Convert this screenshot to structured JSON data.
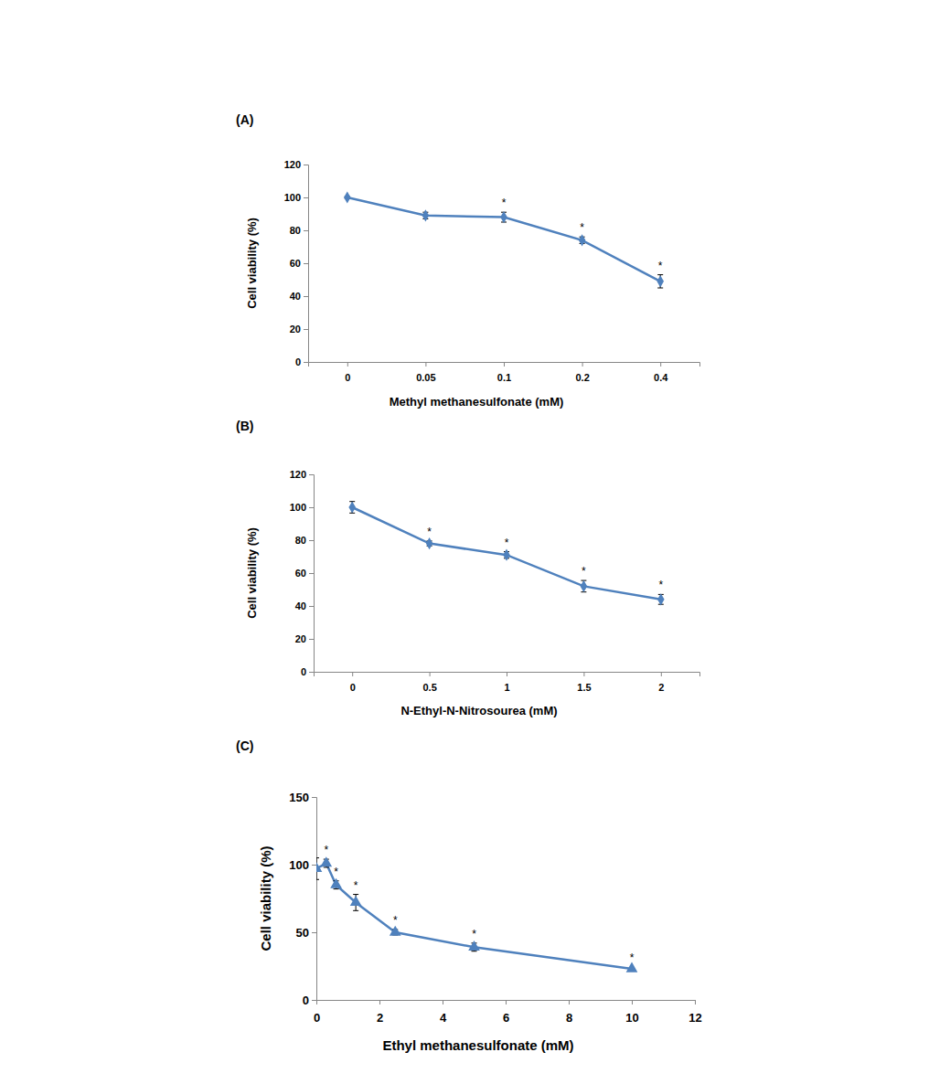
{
  "chart_data": [
    {
      "type": "line",
      "title": "(A)",
      "categories": [
        "0",
        "0.05",
        "0.1",
        "0.2",
        "0.4"
      ],
      "values": [
        100,
        89,
        88,
        74,
        49
      ],
      "errors": [
        0.5,
        2,
        3,
        2,
        4
      ],
      "significance": [
        null,
        null,
        "*",
        "*",
        "*"
      ],
      "color": "#4f81bd",
      "marker": "diamond",
      "x_label": "Methyl methanesulfonate (mM)",
      "y_label": "Cell viability (%)",
      "ylim": [
        0,
        120
      ],
      "yticks": [
        0,
        20,
        40,
        60,
        80,
        100,
        120
      ],
      "grid": false
    },
    {
      "type": "line",
      "title": "(B)",
      "categories": [
        "0",
        "0.5",
        "1",
        "1.5",
        "2"
      ],
      "values": [
        100,
        78,
        71,
        52,
        44
      ],
      "errors": [
        3.5,
        1.5,
        2,
        3.5,
        3
      ],
      "significance": [
        null,
        "*",
        "*",
        "*",
        "*"
      ],
      "color": "#4f81bd",
      "marker": "diamond",
      "x_label": "N-Ethyl-N-Nitrosourea (mM)",
      "y_label": "Cell viability (%)",
      "ylim": [
        0,
        120
      ],
      "yticks": [
        0,
        20,
        40,
        60,
        80,
        100,
        120
      ],
      "grid": false
    },
    {
      "type": "line",
      "title": "(C)",
      "x": [
        0,
        0.3125,
        0.625,
        1.25,
        2.5,
        5,
        10
      ],
      "values": [
        97,
        101,
        85,
        72,
        50,
        39,
        23
      ],
      "errors": [
        8,
        3,
        3,
        6,
        2,
        3,
        1
      ],
      "significance": [
        null,
        "*",
        "*",
        "*",
        "*",
        "*",
        "*"
      ],
      "color": "#4f81bd",
      "marker": "triangle",
      "x_label": "Ethyl methanesulfonate (mM)",
      "y_label": "Cell viability (%)",
      "xlim": [
        0,
        12
      ],
      "xticks": [
        0,
        2,
        4,
        6,
        8,
        10,
        12
      ],
      "ylim": [
        0,
        150
      ],
      "yticks": [
        0,
        50,
        100,
        150
      ],
      "grid": false
    }
  ]
}
